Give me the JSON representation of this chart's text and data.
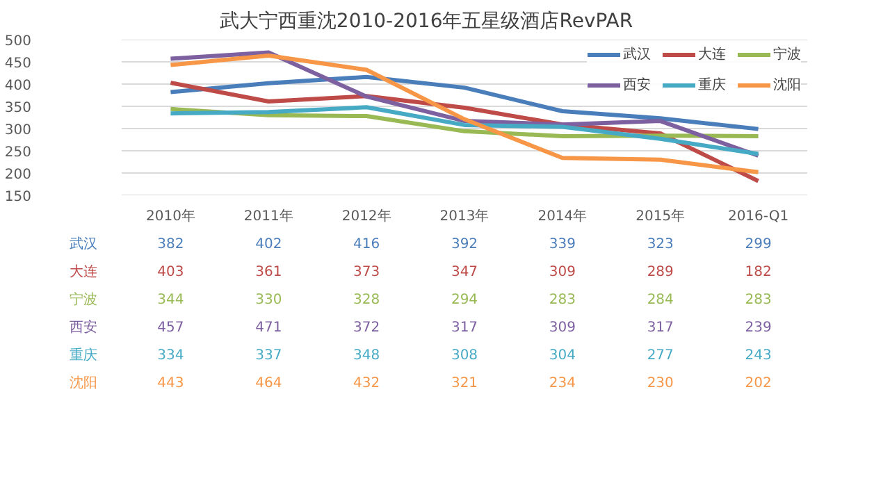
{
  "chart_data": {
    "type": "line",
    "title": "武大宁西重沈2010-2016年五星级酒店RevPAR",
    "categories": [
      "2010年",
      "2011年",
      "2012年",
      "2013年",
      "2014年",
      "2015年",
      "2016-Q1"
    ],
    "series": [
      {
        "name": "武汉",
        "color": "#4a7ebb",
        "values": [
          382,
          402,
          416,
          392,
          339,
          323,
          299
        ]
      },
      {
        "name": "大连",
        "color": "#be4b48",
        "values": [
          403,
          361,
          373,
          347,
          309,
          289,
          182
        ]
      },
      {
        "name": "宁波",
        "color": "#98b954",
        "values": [
          344,
          330,
          328,
          294,
          283,
          284,
          283
        ]
      },
      {
        "name": "西安",
        "color": "#7d60a0",
        "values": [
          457,
          471,
          372,
          317,
          309,
          317,
          239
        ]
      },
      {
        "name": "重庆",
        "color": "#46aac5",
        "values": [
          334,
          337,
          348,
          308,
          304,
          277,
          243
        ]
      },
      {
        "name": "沈阳",
        "color": "#f79646",
        "values": [
          443,
          464,
          432,
          321,
          234,
          230,
          202
        ]
      }
    ],
    "ylim": [
      150,
      500
    ],
    "yticks": [
      150,
      200,
      250,
      300,
      350,
      400,
      450,
      500
    ],
    "grid": "y",
    "legend": "top right",
    "data_labels": true
  }
}
